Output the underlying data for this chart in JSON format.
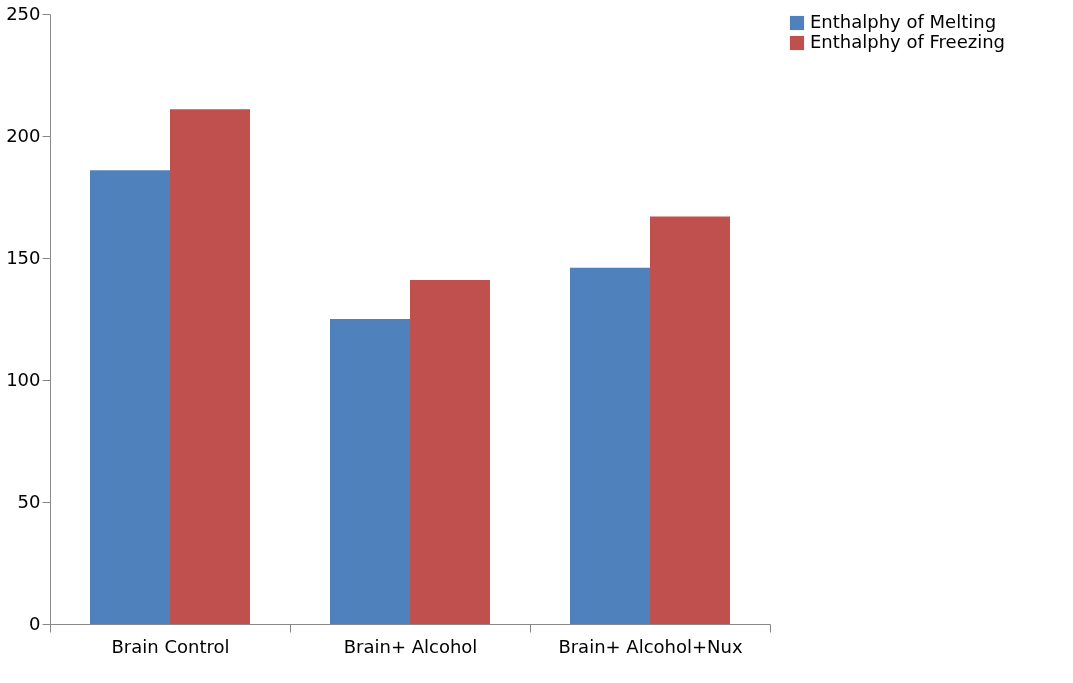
{
  "chart_data": {
    "type": "bar",
    "categories": [
      "Brain Control",
      "Brain+ Alcohol",
      "Brain+ Alcohol+Nux"
    ],
    "series": [
      {
        "name": "Enthalphy of Melting",
        "color": "#4f81bd",
        "values": [
          186,
          125,
          146
        ]
      },
      {
        "name": "Enthalphy of Freezing",
        "color": "#c0504d",
        "values": [
          211,
          141,
          167
        ]
      }
    ],
    "ylim": [
      0,
      250
    ],
    "yticks": [
      0,
      50,
      100,
      150,
      200,
      250
    ],
    "grid": false,
    "legend": "right"
  }
}
